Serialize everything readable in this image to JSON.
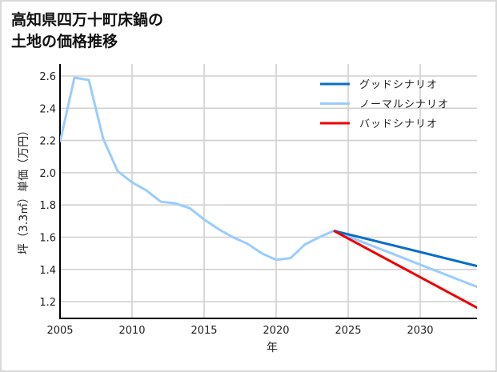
{
  "title": {
    "line1": "高知県四万十町床鍋の",
    "line2": "土地の価格推移"
  },
  "chart_data": {
    "type": "line",
    "title": "高知県四万十町床鍋の土地の価格推移",
    "xlabel": "年",
    "ylabel": "坪（3.3㎡）単価（万円）",
    "xlim": [
      2005,
      2034
    ],
    "ylim": [
      1.1,
      2.65
    ],
    "x_ticks": [
      2005,
      2010,
      2015,
      2020,
      2025,
      2030
    ],
    "y_ticks": [
      1.2,
      1.4,
      1.6,
      1.8,
      2.0,
      2.2,
      2.4,
      2.6
    ],
    "grid": true,
    "legend_position": "upper right",
    "series": [
      {
        "name": "グッドシナリオ",
        "color": "#0a6ec7",
        "x": [
          2024,
          2034
        ],
        "values": [
          1.64,
          1.42
        ]
      },
      {
        "name": "ノーマルシナリオ",
        "color": "#99ccff",
        "x": [
          2005,
          2006,
          2007,
          2008,
          2009,
          2010,
          2011,
          2012,
          2013,
          2014,
          2015,
          2016,
          2017,
          2018,
          2019,
          2020,
          2021,
          2022,
          2023,
          2024,
          2034
        ],
        "values": [
          2.19,
          2.59,
          2.575,
          2.21,
          2.01,
          1.94,
          1.89,
          1.82,
          1.81,
          1.78,
          1.71,
          1.65,
          1.6,
          1.56,
          1.5,
          1.46,
          1.47,
          1.555,
          1.6,
          1.64,
          1.29
        ]
      },
      {
        "name": "バッドシナリオ",
        "color": "#ee0000",
        "x": [
          2024,
          2034
        ],
        "values": [
          1.64,
          1.16
        ]
      }
    ]
  }
}
